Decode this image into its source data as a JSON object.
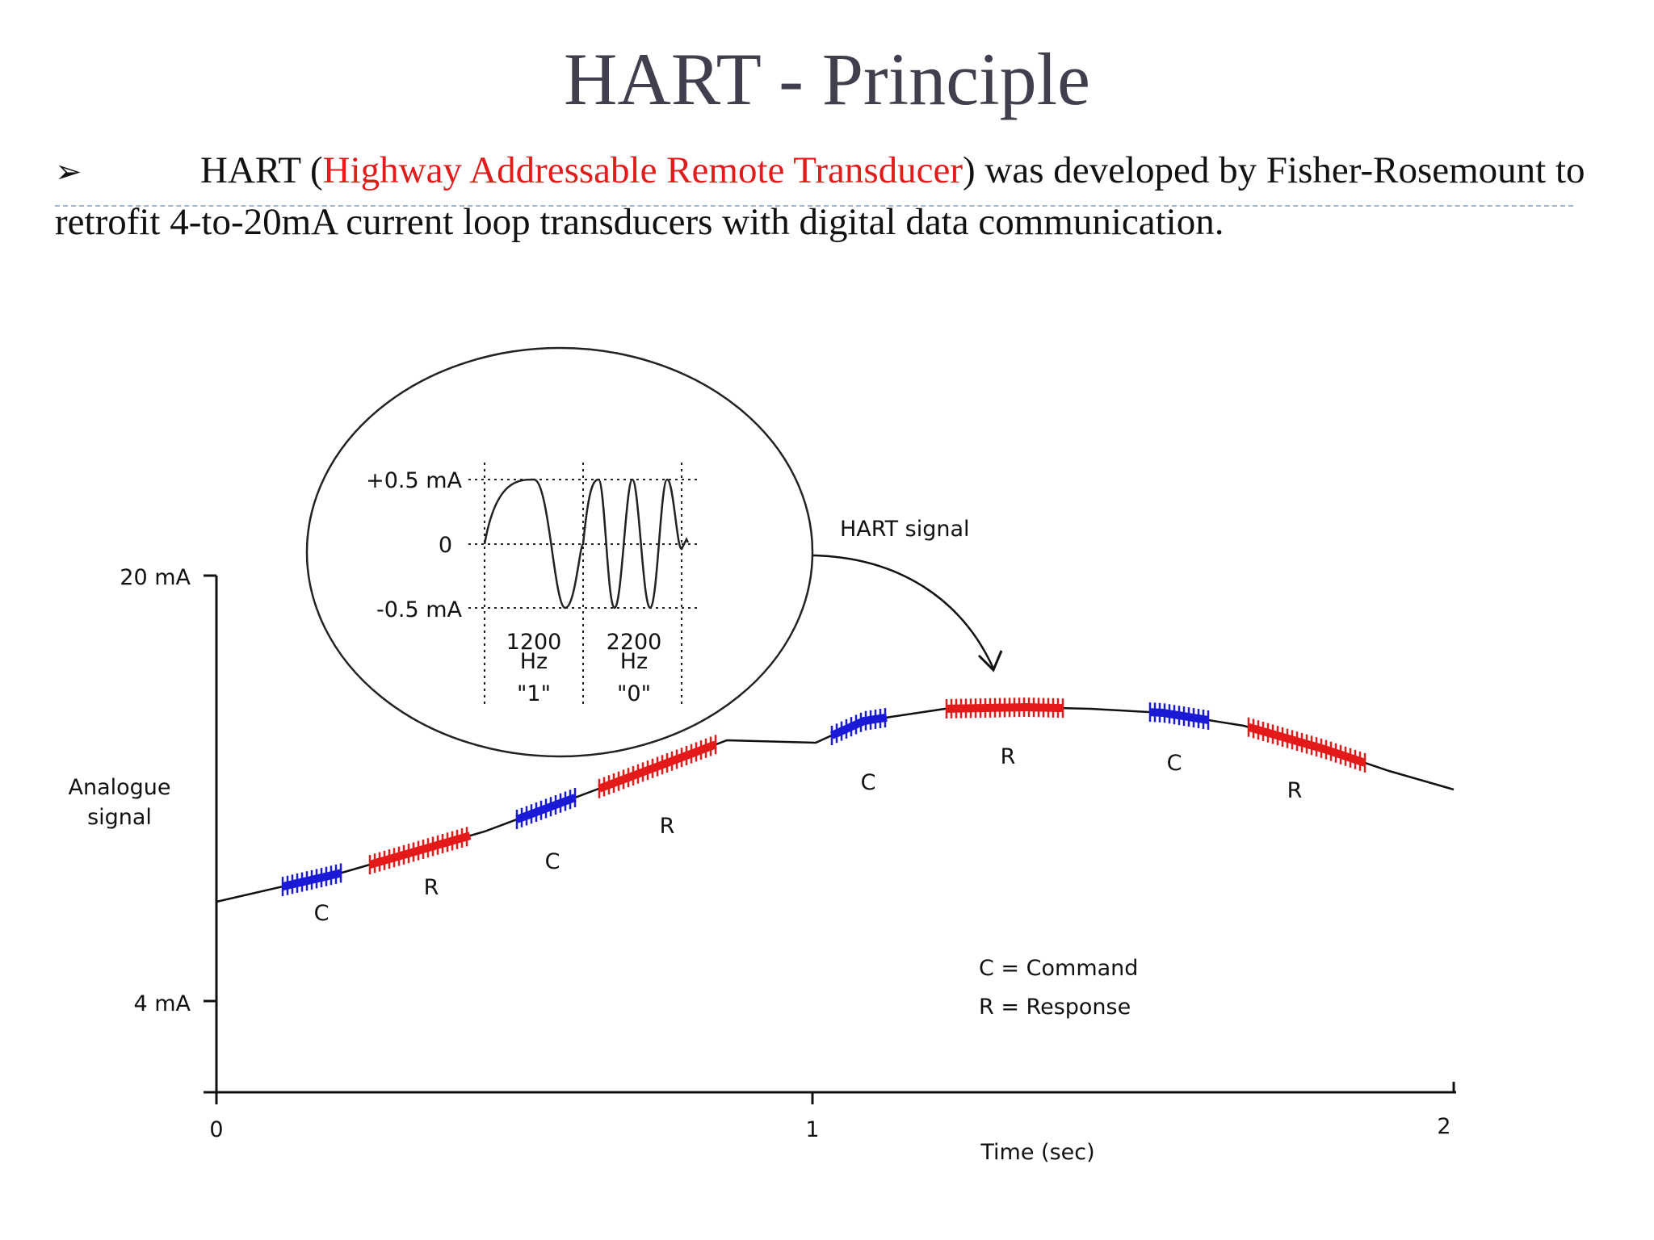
{
  "slide": {
    "title": "HART - Principle",
    "bullet_marker": "➢",
    "bullet_prefix": "HART (",
    "bullet_highlight": "Highway Addressable Remote Transducer",
    "bullet_suffix": ") was developed by Fisher-Rosemount to retrofit 4-to-20mA current loop transducers with digital data communication."
  },
  "diagram": {
    "y_axis": {
      "top_label": "20 mA",
      "bottom_label": "4 mA",
      "title_line1": "Analogue",
      "title_line2": "signal"
    },
    "x_axis": {
      "ticks": [
        "0",
        "1",
        "2"
      ],
      "title": "Time (sec)"
    },
    "inset": {
      "labels": {
        "pos": "+0.5 mA",
        "zero": "0",
        "neg": "-0.5 mA"
      },
      "freq1": {
        "value": "1200",
        "unit": "Hz",
        "bit": "\"1\""
      },
      "freq2": {
        "value": "2200",
        "unit": "Hz",
        "bit": "\"0\""
      }
    },
    "callout": "HART signal",
    "segment_letters": {
      "command": "C",
      "response": "R"
    },
    "legend": {
      "command": "C = Command",
      "response": "R = Response"
    },
    "colors": {
      "command": "#1a1ad6",
      "response": "#e41a1a",
      "curve": "#111111"
    }
  }
}
